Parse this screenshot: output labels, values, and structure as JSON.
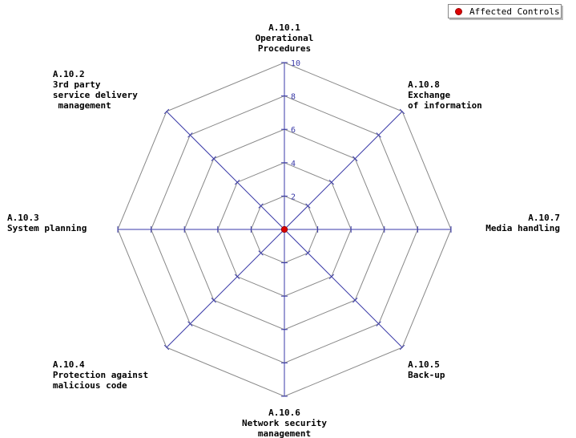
{
  "chart_data": {
    "type": "radar",
    "title": "",
    "axes": [
      {
        "id": "A.10.1",
        "lines": [
          "A.10.1",
          "Operational",
          "Procedures"
        ]
      },
      {
        "id": "A.10.8",
        "lines": [
          "A.10.8",
          "Exchange",
          "of information"
        ]
      },
      {
        "id": "A.10.7",
        "lines": [
          "A.10.7",
          "Media handling"
        ]
      },
      {
        "id": "A.10.5",
        "lines": [
          "A.10.5",
          "Back-up"
        ]
      },
      {
        "id": "A.10.6",
        "lines": [
          "A.10.6",
          "Network security",
          "management"
        ]
      },
      {
        "id": "A.10.4",
        "lines": [
          "A.10.4",
          "Protection against",
          "malicious code"
        ]
      },
      {
        "id": "A.10.3",
        "lines": [
          "A.10.3",
          "System planning"
        ]
      },
      {
        "id": "A.10.2",
        "lines": [
          "A.10.2",
          "3rd party",
          "service delivery",
          " management"
        ]
      }
    ],
    "scale": {
      "min": 0,
      "max": 10,
      "ticks": [
        2,
        4,
        6,
        8,
        10
      ]
    },
    "series": [
      {
        "name": "Affected Controls",
        "color": "#dd0000",
        "values": [
          0,
          0,
          0,
          0,
          0,
          0,
          0,
          0
        ]
      }
    ],
    "legend_position": "top-right",
    "colors": {
      "grid": "#888888",
      "axis": "#3a3aa8",
      "label": "#000000"
    }
  }
}
